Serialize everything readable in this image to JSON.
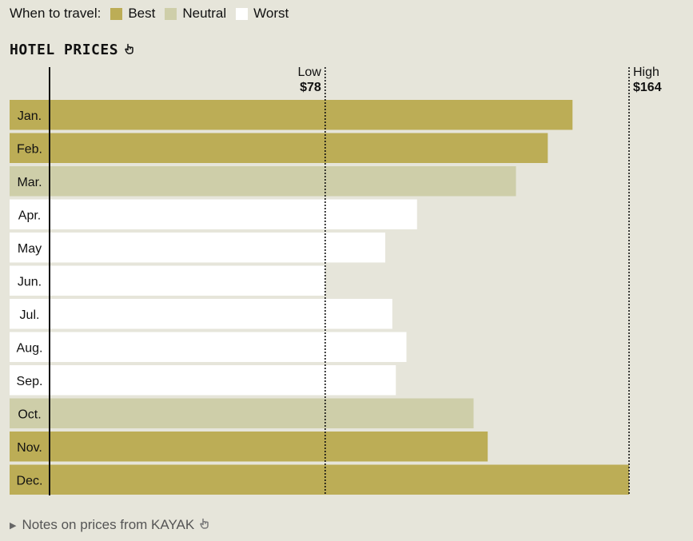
{
  "legend": {
    "title": "When to travel:",
    "items": [
      {
        "label": "Best",
        "color": "#bcad56"
      },
      {
        "label": "Neutral",
        "color": "#cecea9"
      },
      {
        "label": "Worst",
        "color": "#ffffff"
      }
    ]
  },
  "chart_title": "HOTEL PRICES",
  "footer": {
    "note_link": "Notes on prices from KAYAK"
  },
  "chart_data": {
    "type": "bar",
    "orientation": "horizontal",
    "title": "HOTEL PRICES",
    "categories": [
      "Jan.",
      "Feb.",
      "Mar.",
      "Apr.",
      "May",
      "Jun.",
      "Jul.",
      "Aug.",
      "Sep.",
      "Oct.",
      "Nov.",
      "Dec."
    ],
    "values": [
      148,
      141,
      132,
      104,
      95,
      78,
      97,
      101,
      98,
      120,
      124,
      164
    ],
    "ratings": [
      "Best",
      "Best",
      "Neutral",
      "Worst",
      "Worst",
      "Worst",
      "Worst",
      "Worst",
      "Worst",
      "Neutral",
      "Best",
      "Best"
    ],
    "reference_lines": [
      {
        "label": "Low",
        "value_label": "$78",
        "value": 78
      },
      {
        "label": "High",
        "value_label": "$164",
        "value": 164
      }
    ],
    "xlim": [
      0,
      164
    ],
    "grid": false
  }
}
